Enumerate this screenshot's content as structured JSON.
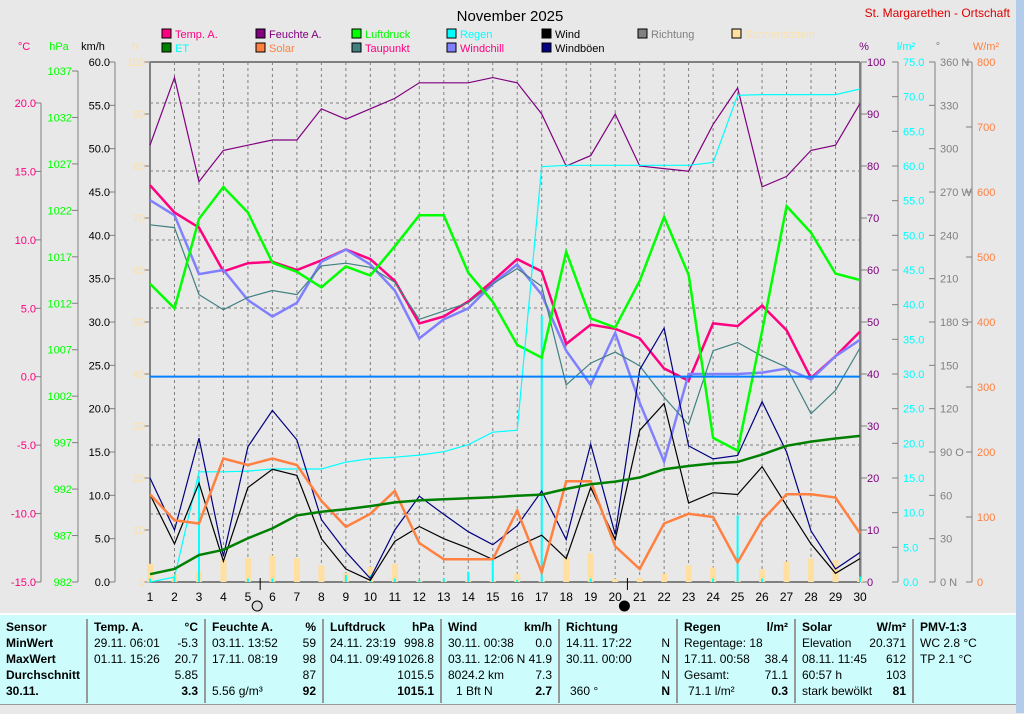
{
  "title": "November 2025",
  "station": "St. Margarethen - Ortschaft",
  "legend": [
    {
      "label": "Temp. A.",
      "color": "#ff0080",
      "text_color": "#ff0080"
    },
    {
      "label": "ET",
      "color": "#008000",
      "text_color": "#00ffff"
    },
    {
      "label": "Feuchte A.",
      "color": "#800080",
      "text_color": "#800080"
    },
    {
      "label": "Solar",
      "color": "#ff8040",
      "text_color": "#ff8040"
    },
    {
      "label": "Luftdruck",
      "color": "#00ff00",
      "text_color": "#00ff00"
    },
    {
      "label": "Taupunkt",
      "color": "#408080",
      "text_color": "#ff0080"
    },
    {
      "label": "Regen",
      "color": "#00ffff",
      "text_color": "#00ffff"
    },
    {
      "label": "Windchill",
      "color": "#8080ff",
      "text_color": "#ff0080"
    },
    {
      "label": "Wind",
      "color": "#000000",
      "text_color": "#000000"
    },
    {
      "label": "Windböen",
      "color": "#000080",
      "text_color": "#000000"
    },
    {
      "label": "Richtung",
      "color": "#808080",
      "text_color": "#808080"
    },
    {
      "label": "Sonnenschein",
      "color": "#ffe0a0",
      "text_color": "#ffe0a0"
    }
  ],
  "axes": {
    "temp": {
      "unit": "°C",
      "ticks": [
        "20.0",
        "15.0",
        "10.0",
        "5.0",
        "0.0",
        "-5.0",
        "-10.0",
        "-15.0"
      ],
      "color": "#ff0080"
    },
    "pressure": {
      "unit": "hPa",
      "ticks": [
        "1037",
        "1032",
        "1027",
        "1022",
        "1017",
        "1012",
        "1007",
        "1002",
        "997",
        "992",
        "987",
        "982"
      ],
      "color": "#00ff00"
    },
    "wind": {
      "unit": "km/h",
      "ticks": [
        "60.0",
        "55.0",
        "50.0",
        "45.0",
        "40.0",
        "35.0",
        "30.0",
        "25.0",
        "20.0",
        "15.0",
        "10.0",
        "5.0",
        "0.0"
      ],
      "color": "#000000"
    },
    "sun": {
      "unit": "h",
      "ticks": [
        "100",
        "90",
        "80",
        "70",
        "60",
        "50",
        "40",
        "30",
        "20",
        "10",
        "0"
      ],
      "color": "#ffe0a0"
    },
    "humidity": {
      "unit": "%",
      "ticks": [
        "100",
        "90",
        "80",
        "70",
        "60",
        "50",
        "40",
        "30",
        "20",
        "10",
        "0"
      ],
      "color": "#800080"
    },
    "rain": {
      "unit": "l/m²",
      "ticks": [
        "75.0",
        "70.0",
        "65.0",
        "60.0",
        "55.0",
        "50.0",
        "45.0",
        "40.0",
        "35.0",
        "30.0",
        "25.0",
        "20.0",
        "15.0",
        "10.0",
        "5.0",
        "0.0"
      ],
      "color": "#00ffff"
    },
    "direction": {
      "unit": "°",
      "ticks": [
        "360 N",
        "330",
        "300",
        "270 W",
        "240",
        "210",
        "180 S",
        "150",
        "120",
        "90 O",
        "60",
        "30",
        "0 N"
      ],
      "color": "#808080"
    },
    "solar": {
      "unit": "W/m²",
      "ticks": [
        "800",
        "700",
        "600",
        "500",
        "400",
        "300",
        "200",
        "100",
        "0"
      ],
      "color": "#ff8040"
    }
  },
  "chart_data": {
    "type": "line",
    "title": "November 2025",
    "x": [
      1,
      2,
      3,
      4,
      5,
      6,
      7,
      8,
      9,
      10,
      11,
      12,
      13,
      14,
      15,
      16,
      17,
      18,
      19,
      20,
      21,
      22,
      23,
      24,
      25,
      26,
      27,
      28,
      29,
      30
    ],
    "xlim": [
      1,
      30
    ],
    "series": [
      {
        "name": "Temp. A.",
        "axis": "temp",
        "ylim": [
          -15,
          23
        ],
        "color": "#ff0080",
        "values": [
          14.0,
          12.0,
          10.9,
          7.7,
          8.3,
          8.4,
          7.8,
          8.5,
          9.3,
          8.6,
          7.0,
          3.9,
          4.4,
          5.5,
          7.0,
          8.6,
          7.7,
          2.4,
          3.8,
          3.5,
          2.8,
          0.6,
          -0.3,
          3.9,
          3.7,
          5.2,
          3.4,
          -0.1,
          1.5,
          3.3
        ]
      },
      {
        "name": "Windchill",
        "axis": "temp",
        "ylim": [
          -15,
          23
        ],
        "color": "#8080ff",
        "values": [
          12.9,
          11.8,
          7.5,
          7.8,
          5.6,
          4.4,
          5.4,
          8.4,
          9.3,
          8.2,
          6.3,
          2.8,
          4.2,
          5.0,
          6.8,
          8.2,
          6.0,
          1.9,
          -0.6,
          3.2,
          -1.9,
          -6.2,
          0.2,
          0.2,
          0.2,
          0.3,
          0.6,
          -0.2,
          1.5,
          2.7
        ]
      },
      {
        "name": "Taupunkt",
        "axis": "temp",
        "ylim": [
          -15,
          23
        ],
        "color": "#408080",
        "values": [
          11.1,
          10.9,
          6.0,
          4.9,
          5.8,
          6.3,
          6.0,
          8.1,
          8.3,
          8.0,
          6.9,
          4.2,
          4.8,
          5.4,
          6.8,
          7.9,
          6.6,
          -0.6,
          1.0,
          1.8,
          0.8,
          -1.5,
          -3.5,
          1.9,
          2.5,
          1.5,
          0.7,
          -2.7,
          -1.0,
          2.1
        ]
      },
      {
        "name": "Luftdruck",
        "axis": "pressure",
        "ylim": [
          982,
          1039
        ],
        "color": "#00ff00",
        "values": [
          1014.7,
          1012.0,
          1021.8,
          1025.3,
          1022.5,
          1017.0,
          1016.0,
          1014.3,
          1016.6,
          1015.6,
          1018.8,
          1022.2,
          1022.2,
          1015.9,
          1012.7,
          1008.0,
          1006.6,
          1018.2,
          1010.9,
          1009.9,
          1015.0,
          1022.0,
          1015.7,
          997.8,
          996.4,
          1009.5,
          1023.2,
          1020.3,
          1015.8,
          1015.1
        ]
      },
      {
        "name": "Feuchte A.",
        "axis": "humidity",
        "ylim": [
          0,
          100
        ],
        "color": "#800080",
        "values": [
          84,
          97,
          77,
          83,
          84,
          85,
          85,
          91,
          89,
          91,
          93,
          96,
          96,
          96,
          97,
          96,
          90,
          80,
          82,
          90,
          80,
          79.5,
          79,
          88,
          95,
          76,
          78,
          83,
          84,
          92
        ]
      },
      {
        "name": "Regen",
        "axis": "rain",
        "ylim": [
          0,
          75
        ],
        "color": "#00ffff",
        "values": [
          0,
          0.7,
          15.9,
          15.9,
          16.0,
          16.3,
          16.3,
          16.3,
          17.3,
          17.8,
          18.0,
          18.3,
          18.8,
          19.8,
          21.6,
          21.9,
          59.9,
          60.1,
          60.1,
          60.1,
          60.1,
          60.1,
          60.1,
          60.5,
          70.2,
          70.3,
          70.3,
          70.3,
          70.3,
          71.1
        ]
      },
      {
        "name": "Wind",
        "axis": "wind",
        "ylim": [
          0,
          60
        ],
        "color": "#000000",
        "values": [
          10.1,
          4.4,
          11.4,
          2.4,
          10.9,
          13.0,
          12.3,
          5.0,
          1.5,
          0.2,
          4.7,
          6.4,
          5.0,
          3.9,
          2.6,
          4.1,
          5.4,
          2.7,
          10.9,
          4.9,
          17.5,
          20.6,
          9.1,
          10.3,
          10.1,
          13.3,
          8.8,
          4.4,
          1.0,
          2.7
        ]
      },
      {
        "name": "Windböen",
        "axis": "wind",
        "ylim": [
          0,
          60
        ],
        "color": "#000080",
        "values": [
          12.0,
          6.0,
          16.6,
          3.0,
          15.6,
          19.8,
          16.4,
          7.2,
          3.5,
          0.4,
          6.0,
          9.9,
          7.8,
          5.8,
          4.3,
          6.5,
          10.5,
          4.9,
          15.9,
          5.5,
          24.5,
          29.3,
          15.7,
          14.2,
          14.6,
          20.8,
          15.0,
          5.9,
          1.5,
          3.4
        ]
      },
      {
        "name": "Solar",
        "axis": "solar",
        "ylim": [
          0,
          800
        ],
        "color": "#ff8040",
        "values": [
          135,
          95,
          90,
          190,
          180,
          190,
          180,
          125,
          85,
          105,
          140,
          60,
          35,
          35,
          35,
          110,
          15,
          155,
          155,
          55,
          20,
          90,
          105,
          100,
          30,
          95,
          135,
          135,
          130,
          75
        ]
      },
      {
        "name": "ET",
        "axis": "sun",
        "ylim": [
          0,
          100
        ],
        "color": "#008000",
        "values": [
          1.5,
          2.5,
          5.2,
          6.2,
          8.4,
          10.3,
          12.8,
          13.5,
          14.0,
          14.6,
          15.3,
          15.7,
          15.9,
          16.1,
          16.3,
          16.6,
          16.8,
          17.9,
          18.8,
          19.3,
          20.1,
          21.7,
          22.3,
          22.8,
          23.1,
          24.5,
          26.2,
          27.0,
          27.6,
          28.1
        ]
      },
      {
        "name": "Sonnenschein",
        "axis": "sun",
        "ylim": [
          0,
          100
        ],
        "type": "bar",
        "color": "#ffe0a0",
        "values": [
          3.5,
          1.5,
          2.0,
          4.3,
          4.6,
          5.1,
          4.6,
          3.2,
          1.7,
          2.9,
          3.5,
          0.3,
          0.2,
          0.3,
          0.2,
          1.6,
          0.2,
          4.7,
          5.5,
          0.6,
          0.8,
          1.6,
          3.2,
          2.8,
          0.3,
          2.4,
          3.9,
          4.5,
          4.2,
          0.8
        ]
      },
      {
        "name": "Regen täglich",
        "axis": "rain",
        "ylim": [
          0,
          75
        ],
        "type": "bar",
        "color": "#00ffff",
        "values": [
          0.5,
          0.7,
          15.0,
          0,
          0.5,
          0.5,
          0,
          0,
          1.0,
          1.0,
          0.5,
          0.3,
          0.5,
          1.5,
          3.2,
          0.3,
          38.4,
          0,
          0.5,
          0,
          0,
          0,
          0,
          0.5,
          9.6,
          0.5,
          0,
          0,
          0,
          0.8
        ]
      }
    ],
    "reference_line": {
      "axis": "humidity",
      "value": 39.5,
      "color": "#0080ff"
    },
    "moon_markers": [
      {
        "day": 5.5,
        "phase": "full"
      },
      {
        "day": 20.5,
        "phase": "new"
      }
    ],
    "grid": true
  },
  "table": {
    "row_labels": [
      "Sensor",
      "MinWert",
      "MaxWert",
      "Durchschnitt",
      "30.11."
    ],
    "temp": {
      "header": "Temp. A.",
      "unit": "°C",
      "min_time": "29.11.  06:01",
      "min": "-5.3",
      "max_time": "01.11.  15:26",
      "max": "20.7",
      "avg": "5.85",
      "current": "3.3"
    },
    "humidity": {
      "header": "Feuchte A.",
      "unit": "%",
      "min_time": "03.11.  13:52",
      "min": "59",
      "max_time": "17.11.  08:19",
      "max": "98",
      "avg": "87",
      "extra": "5.56 g/m³",
      "current": "92"
    },
    "pressure": {
      "header": "Luftdruck",
      "unit": "hPa",
      "min_time": "24.11.  23:19",
      "min": "998.8",
      "max_time": "04.11.  09:49",
      "max": "1026.8",
      "avg": "1015.5",
      "current": "1015.1"
    },
    "wind": {
      "header": "Wind",
      "unit": "km/h",
      "min_time": "30.11.  00:38",
      "min": "0.0",
      "max_time": "03.11.  12:06",
      "max": "N 41.9",
      "distance": "8024.2 km",
      "avg": "7.3",
      "bft": "1 Bft N",
      "current": "2.7"
    },
    "direction": {
      "header": "Richtung",
      "min_time": "14.11.  17:22",
      "min": "N",
      "max_time": "30.11.  00:00",
      "max": "N",
      "avg": "N",
      "deg": "360 °",
      "current": "N"
    },
    "rain": {
      "header": "Regen",
      "unit": "l/m²",
      "days": "Regentage: 18",
      "max_time": "17.11.  00:58",
      "max": "38.4",
      "total_label": "Gesamt:",
      "total": "71.1",
      "sum": "71.1 l/m²",
      "current": "0.3"
    },
    "solar": {
      "header": "Solar",
      "unit": "W/m²",
      "elev_label": "Elevation",
      "elev": "20.371",
      "max_time": "08.11.  11:45",
      "max": "612",
      "hours": "60:57 h",
      "avg": "103",
      "sky": "stark bewölkt",
      "current": "81"
    },
    "pmv": {
      "header": "PMV-1:3",
      "wc": "WC 2.8 °C",
      "tp": "TP 2.1 °C"
    }
  }
}
